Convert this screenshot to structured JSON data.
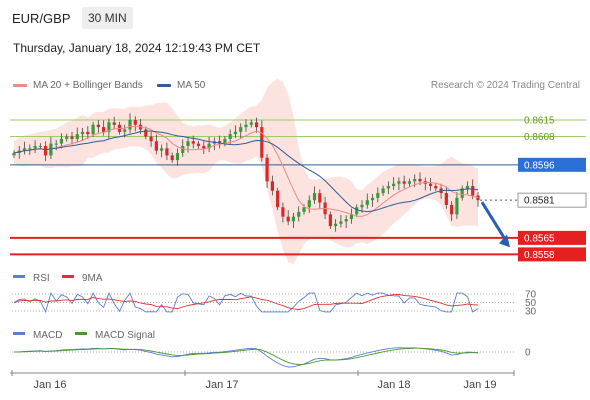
{
  "header": {
    "pair": "EUR/GBP",
    "timeframe": "30 MIN"
  },
  "datetime": "Thursday, January 18, 2024 12:19:43 PM CET",
  "legend": {
    "items": [
      {
        "label": "MA 20 + Bollinger Bands",
        "color": "#f08a80"
      },
      {
        "label": "MA 50",
        "color": "#2f5d9a"
      }
    ],
    "credit": "Research © 2024 Trading Central"
  },
  "chart_data": {
    "type": "candlestick",
    "price_range": [
      0.85535,
      0.86235
    ],
    "x_labels": [
      "Jan 16",
      "Jan 17",
      "Jan 18",
      "Jan 19"
    ],
    "levels": [
      {
        "value": 0.8615,
        "label": "0.8615",
        "style": "resistance-green"
      },
      {
        "value": 0.8608,
        "label": "0.8608",
        "style": "resistance-green"
      },
      {
        "value": 0.8596,
        "label": "0.8596",
        "style": "pivot-blue"
      },
      {
        "value": 0.8581,
        "label": "0.8581",
        "style": "current"
      },
      {
        "value": 0.8565,
        "label": "0.8565",
        "style": "support-red"
      },
      {
        "value": 0.8558,
        "label": "0.8558",
        "style": "support-red"
      }
    ],
    "close_series": [
      0.8601,
      0.8602,
      0.8603,
      0.8603,
      0.8604,
      0.8604,
      0.86,
      0.8605,
      0.8605,
      0.8607,
      0.8608,
      0.8607,
      0.8609,
      0.861,
      0.8609,
      0.8613,
      0.8612,
      0.861,
      0.8614,
      0.8613,
      0.861,
      0.8611,
      0.8615,
      0.8613,
      0.8611,
      0.8608,
      0.8606,
      0.8602,
      0.8603,
      0.86,
      0.8598,
      0.8601,
      0.8604,
      0.8606,
      0.8605,
      0.8604,
      0.8603,
      0.8605,
      0.8606,
      0.8605,
      0.8607,
      0.8609,
      0.861,
      0.8612,
      0.8613,
      0.8614,
      0.8612,
      0.8599,
      0.8589,
      0.8585,
      0.8578,
      0.8574,
      0.8572,
      0.8574,
      0.8576,
      0.8578,
      0.8581,
      0.8584,
      0.858,
      0.8575,
      0.857,
      0.8571,
      0.8572,
      0.8573,
      0.8575,
      0.8578,
      0.8579,
      0.8581,
      0.8582,
      0.8584,
      0.8586,
      0.8587,
      0.8588,
      0.8589,
      0.8588,
      0.8589,
      0.859,
      0.8589,
      0.8588,
      0.8587,
      0.8586,
      0.8584,
      0.8579,
      0.8575,
      0.8582,
      0.8586,
      0.8587,
      0.8583,
      0.8581
    ],
    "forecast_arrow": {
      "from": 0.8581,
      "to": 0.8561
    },
    "rsi": {
      "label": "RSI",
      "ma_label": "9MA",
      "color": "#5a7fd6",
      "ma_color": "#e03030",
      "levels": [
        "70",
        "50",
        "30"
      ]
    },
    "macd": {
      "label": "MACD",
      "signal_label": "MACD Signal",
      "color": "#5a7fd6",
      "signal_color": "#4a9a2a",
      "zero_label": "0"
    }
  }
}
